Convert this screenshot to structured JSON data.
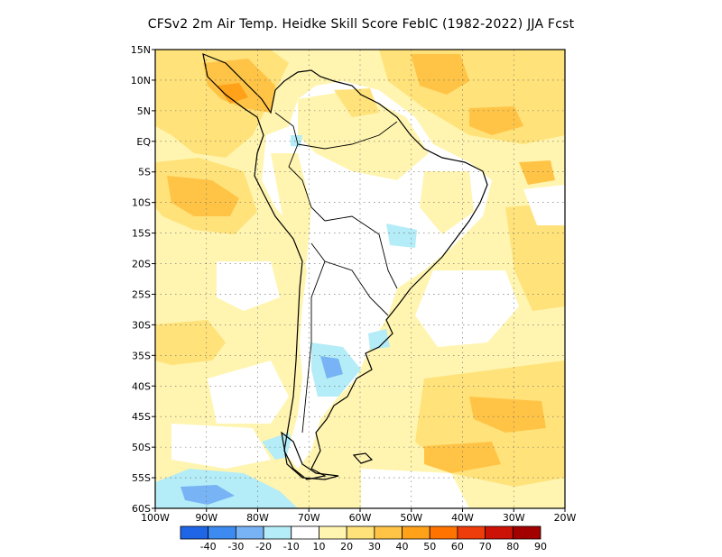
{
  "title": "CFSv2  2m Air Temp. Heidke Skill Score FebIC (1982-2022) JJA Fcst",
  "map": {
    "lat_labels": [
      "15N",
      "10N",
      "5N",
      "EQ",
      "5S",
      "10S",
      "15S",
      "20S",
      "25S",
      "30S",
      "35S",
      "40S",
      "45S",
      "50S",
      "55S",
      "60S"
    ],
    "lon_labels": [
      "100W",
      "90W",
      "80W",
      "70W",
      "60W",
      "50W",
      "40W",
      "30W",
      "20W"
    ],
    "lon_range": [
      -100,
      -20
    ],
    "lat_range": [
      -60,
      15
    ]
  },
  "colorbar": {
    "labels": [
      "-40",
      "-30",
      "-20",
      "-10",
      "10",
      "20",
      "30",
      "40",
      "50",
      "60",
      "70",
      "80",
      "90"
    ],
    "colors": [
      "#1f66e6",
      "#3d8bf0",
      "#78b4f5",
      "#b4ecf7",
      "#ffffff",
      "#fff5b0",
      "#ffe27a",
      "#ffc446",
      "#ffa21a",
      "#ff7300",
      "#ee3c0b",
      "#cc1206",
      "#a30000"
    ]
  }
}
